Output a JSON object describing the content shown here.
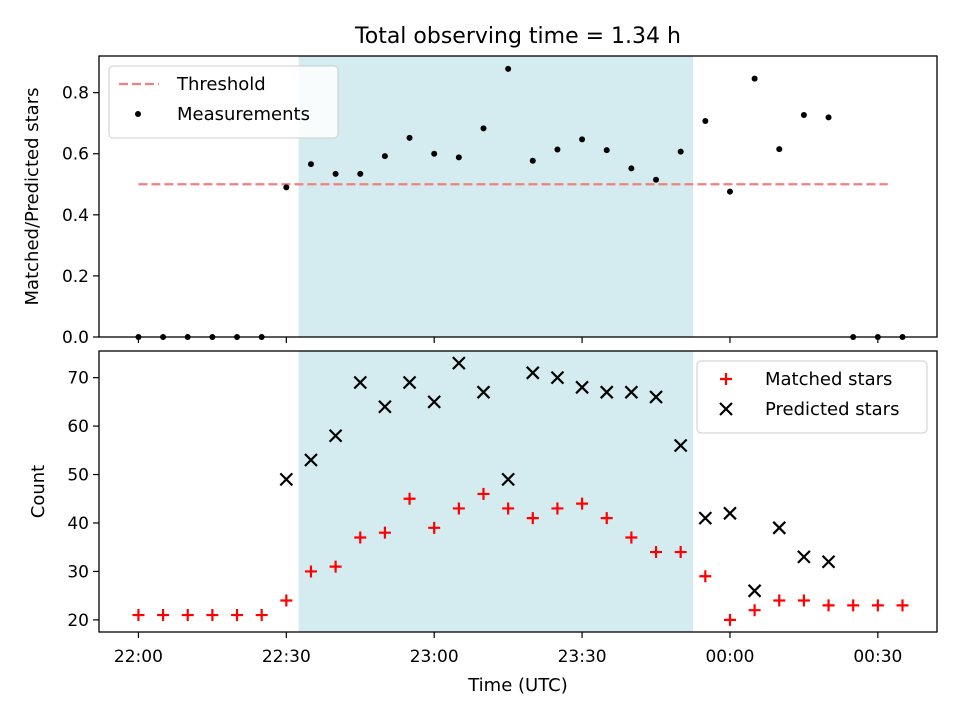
{
  "chart_data": {
    "title": "Total observing time = 1.34 h",
    "xlabel": "Time (UTC)",
    "x_ticks": [
      "22:00",
      "22:30",
      "23:00",
      "23:30",
      "00:00",
      "00:30"
    ],
    "x_tick_minutes": [
      0,
      30,
      60,
      90,
      120,
      150
    ],
    "x_range_minutes": [
      -8,
      162
    ],
    "x_reference": "22:00",
    "shaded_span_minutes": [
      32.5,
      112.5
    ],
    "shade_color": "#d4ebf0",
    "panels": [
      {
        "type": "scatter",
        "ylabel": "Matched/Predicted stars",
        "ylim": [
          0,
          0.92
        ],
        "yticks": [
          "0.0",
          "0.2",
          "0.4",
          "0.6",
          "0.8"
        ],
        "legend_position": "upper-left",
        "threshold": {
          "name": "Threshold",
          "value": 0.5,
          "x_range_minutes": [
            0,
            152
          ],
          "color": "#f08080"
        },
        "series": [
          {
            "name": "Measurements",
            "color": "#000000",
            "marker": "dot",
            "x_minutes": [
              0,
              5,
              10,
              15,
              20,
              25,
              30,
              35,
              40,
              45,
              50,
              55,
              60,
              65,
              70,
              75,
              80,
              85,
              90,
              95,
              100,
              105,
              110,
              115,
              120,
              125,
              130,
              135,
              140,
              145,
              150,
              155
            ],
            "y": [
              0,
              0,
              0,
              0,
              0,
              0,
              0.49,
              0.566,
              0.534,
              0.534,
              0.592,
              0.652,
              0.6,
              0.588,
              0.683,
              0.878,
              0.577,
              0.614,
              0.647,
              0.612,
              0.552,
              0.515,
              0.607,
              0.707,
              0.476,
              0.846,
              0.615,
              0.727,
              0.719,
              0,
              0,
              0
            ]
          }
        ]
      },
      {
        "type": "scatter",
        "ylabel": "Count",
        "ylim": [
          17.5,
          75.5
        ],
        "yticks": [
          "20",
          "30",
          "40",
          "50",
          "60",
          "70"
        ],
        "legend_position": "upper-right",
        "series": [
          {
            "name": "Matched stars",
            "color": "#ff0000",
            "marker": "plus",
            "x_minutes": [
              0,
              5,
              10,
              15,
              20,
              25,
              30,
              35,
              40,
              45,
              50,
              55,
              60,
              65,
              70,
              75,
              80,
              85,
              90,
              95,
              100,
              105,
              110,
              115,
              120,
              125,
              130,
              135,
              140,
              145,
              150,
              155
            ],
            "y": [
              21,
              21,
              21,
              21,
              21,
              21,
              24,
              30,
              31,
              37,
              38,
              45,
              39,
              43,
              46,
              43,
              41,
              43,
              44,
              41,
              37,
              34,
              34,
              29,
              20,
              22,
              24,
              24,
              23,
              23,
              23,
              23
            ]
          },
          {
            "name": "Predicted stars",
            "color": "#000000",
            "marker": "x",
            "x_minutes": [
              30,
              35,
              40,
              45,
              50,
              55,
              60,
              65,
              70,
              75,
              80,
              85,
              90,
              95,
              100,
              105,
              110,
              115,
              120,
              125,
              130,
              135,
              140
            ],
            "y": [
              49,
              53,
              58,
              69,
              64,
              69,
              65,
              73,
              67,
              49,
              71,
              70,
              68,
              67,
              67,
              66,
              56,
              41,
              42,
              26,
              39,
              33,
              32
            ]
          }
        ]
      }
    ]
  }
}
